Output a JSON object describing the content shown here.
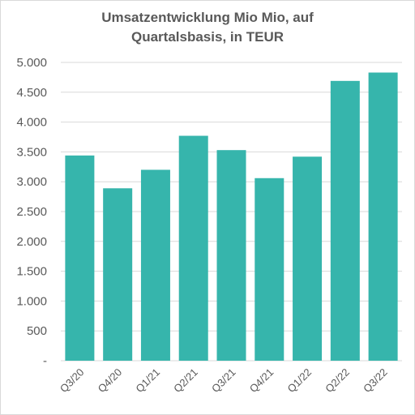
{
  "chart_data": {
    "type": "bar",
    "title_line1": "Umsatzentwicklung Mio Mio, auf",
    "title_line2": "Quartalsbasis, in TEUR",
    "categories": [
      "Q3/20",
      "Q4/20",
      "Q1/21",
      "Q2/21",
      "Q3/21",
      "Q4/21",
      "Q1/22",
      "Q2/22",
      "Q3/22"
    ],
    "values": [
      3440,
      2890,
      3200,
      3770,
      3530,
      3060,
      3420,
      4690,
      4830
    ],
    "ylim": [
      0,
      5000
    ],
    "yticks": [
      0,
      500,
      1000,
      1500,
      2000,
      2500,
      3000,
      3500,
      4000,
      4500,
      5000
    ],
    "ytick_labels": [
      "-",
      "500",
      "1.000",
      "1.500",
      "2.000",
      "2.500",
      "3.000",
      "3.500",
      "4.000",
      "4.500",
      "5.000"
    ],
    "xlabel": "",
    "ylabel": "",
    "grid": true,
    "legend": "none",
    "bar_color": "#36b5ac",
    "grid_color": "#d9d9d9",
    "text_color": "#595959"
  }
}
